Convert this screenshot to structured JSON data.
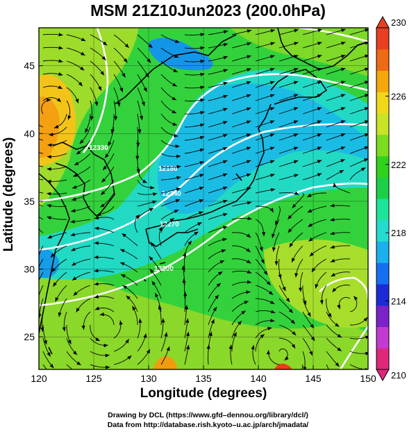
{
  "title": "MSM 21Z10Jun2023 (200.0hPa)",
  "x_axis": {
    "label": "Longitude (degrees)",
    "ticks": [
      "120",
      "125",
      "130",
      "135",
      "140",
      "145",
      "150"
    ]
  },
  "y_axis": {
    "label": "Latitude  (degrees)",
    "ticks": [
      "25",
      "30",
      "35",
      "40",
      "45"
    ]
  },
  "colorbar": {
    "min": 210,
    "max": 230,
    "tick_labels": [
      "230",
      "226",
      "222",
      "218",
      "214",
      "210"
    ],
    "colors": [
      "#e0287a",
      "#c33ad2",
      "#7b22c8",
      "#1c2bd6",
      "#1470f0",
      "#1ab0ec",
      "#22dcd0",
      "#1ee39a",
      "#1ccf48",
      "#30d21c",
      "#7bdd1e",
      "#c9e326",
      "#f0d818",
      "#f4a70d",
      "#ef6a14",
      "#e64020"
    ]
  },
  "contour_labels": [
    "12330",
    "12180",
    "12240",
    "12270",
    "12300"
  ],
  "credits": {
    "line1": "Drawing by DCL (https://www.gfd–dennou.org/library/dcl/)",
    "line2": "Data from http://database.rish.kyoto–u.ac.jp/arch/jmadata/"
  }
}
